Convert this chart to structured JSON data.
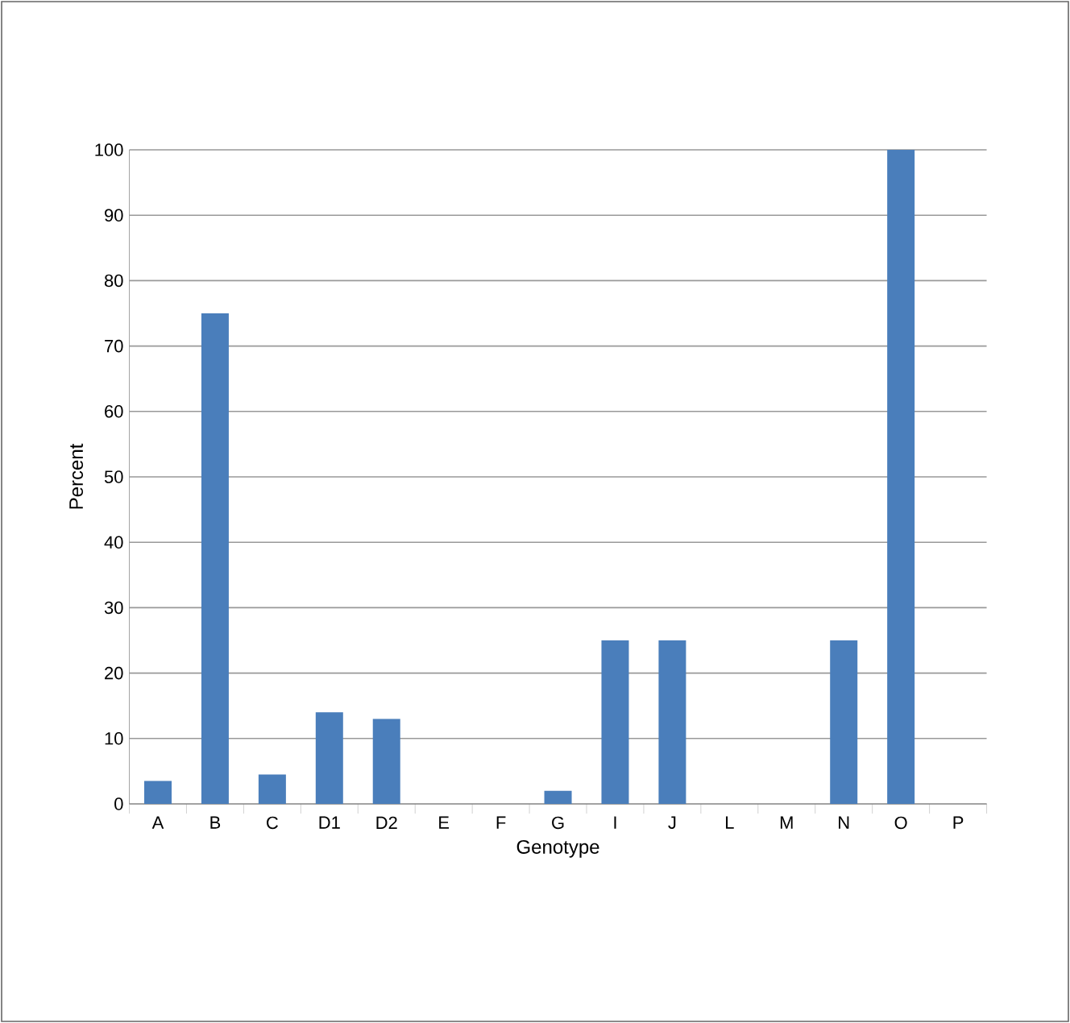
{
  "chart_data": {
    "type": "bar",
    "xlabel": "Genotype",
    "ylabel": "Percent",
    "categories": [
      "A",
      "B",
      "C",
      "D1",
      "D2",
      "E",
      "F",
      "G",
      "I",
      "J",
      "L",
      "M",
      "N",
      "O",
      "P"
    ],
    "values": [
      3.5,
      75,
      4.5,
      14,
      13,
      0,
      0,
      2,
      25,
      25,
      0,
      0,
      25,
      100,
      0
    ],
    "color": "#4a7ebb",
    "ylim": [
      0,
      100
    ],
    "yticks": [
      0,
      10,
      20,
      30,
      40,
      50,
      60,
      70,
      80,
      90,
      100
    ],
    "grid": "y"
  }
}
